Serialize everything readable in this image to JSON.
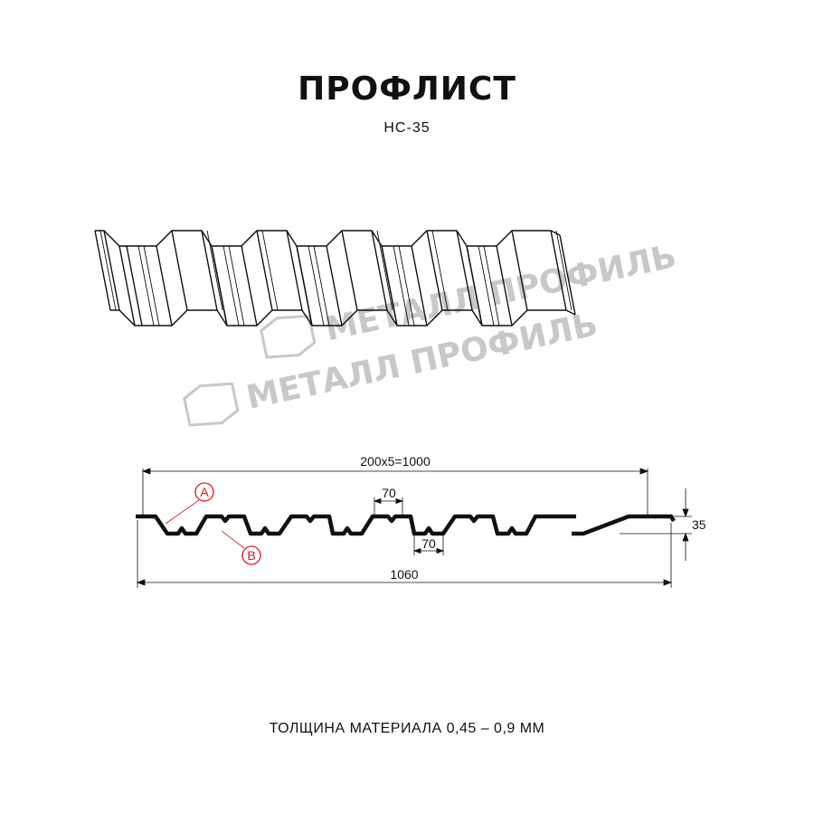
{
  "title": "ПРОФЛИСТ",
  "subtitle": "НС-35",
  "footer": "ТОЛЩИНА МАТЕРИАЛА 0,45 – 0,9 ММ",
  "watermark": "МЕТАЛЛ ПРОФИЛЬ",
  "dimensions": {
    "useful_width": "200x5=1000",
    "total_width": "1060",
    "height": "35",
    "top_flange": "70",
    "bottom_flange": "70"
  },
  "callouts": {
    "a": "A",
    "b": "B"
  },
  "colors": {
    "profile": "#111111",
    "callout": "#e0141e",
    "watermark": "#c8c8c8"
  }
}
